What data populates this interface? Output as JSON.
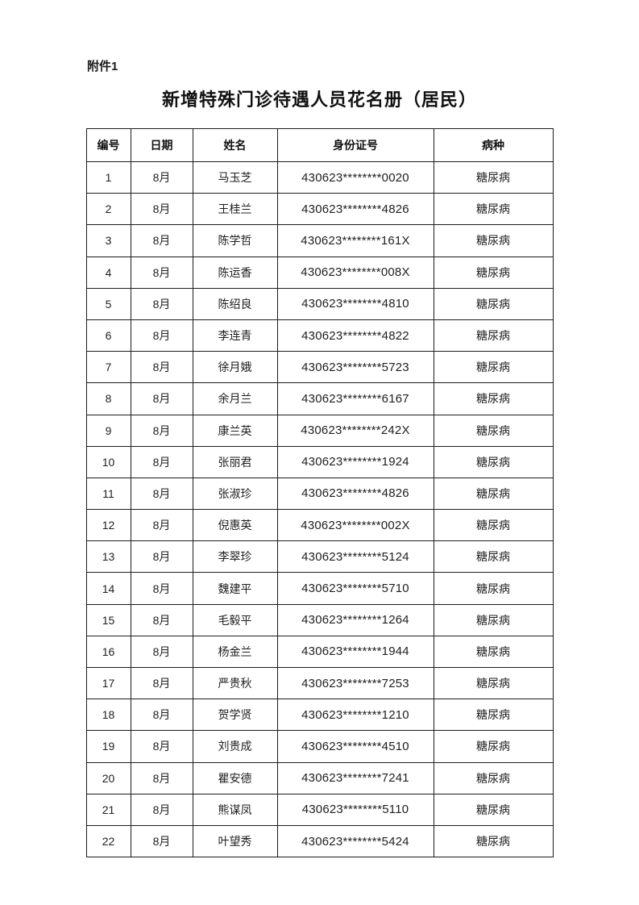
{
  "page": {
    "attachment_label": "附件1",
    "title": "新增特殊门诊待遇人员花名册（居民）"
  },
  "table": {
    "headers": [
      "编号",
      "日期",
      "姓名",
      "身份证号",
      "病种"
    ],
    "column_keys": [
      "number",
      "date",
      "name",
      "id",
      "disease"
    ],
    "rows": [
      [
        "1",
        "8月",
        "马玉芝",
        "430623********0020",
        "糖尿病"
      ],
      [
        "2",
        "8月",
        "王桂兰",
        "430623********4826",
        "糖尿病"
      ],
      [
        "3",
        "8月",
        "陈学哲",
        "430623********161X",
        "糖尿病"
      ],
      [
        "4",
        "8月",
        "陈运香",
        "430623********008X",
        "糖尿病"
      ],
      [
        "5",
        "8月",
        "陈绍良",
        "430623********4810",
        "糖尿病"
      ],
      [
        "6",
        "8月",
        "李连青",
        "430623********4822",
        "糖尿病"
      ],
      [
        "7",
        "8月",
        "徐月娥",
        "430623********5723",
        "糖尿病"
      ],
      [
        "8",
        "8月",
        "余月兰",
        "430623********6167",
        "糖尿病"
      ],
      [
        "9",
        "8月",
        "康兰英",
        "430623********242X",
        "糖尿病"
      ],
      [
        "10",
        "8月",
        "张丽君",
        "430623********1924",
        "糖尿病"
      ],
      [
        "11",
        "8月",
        "张淑珍",
        "430623********4826",
        "糖尿病"
      ],
      [
        "12",
        "8月",
        "倪惠英",
        "430623********002X",
        "糖尿病"
      ],
      [
        "13",
        "8月",
        "李翠珍",
        "430623********5124",
        "糖尿病"
      ],
      [
        "14",
        "8月",
        "魏建平",
        "430623********5710",
        "糖尿病"
      ],
      [
        "15",
        "8月",
        "毛毅平",
        "430623********1264",
        "糖尿病"
      ],
      [
        "16",
        "8月",
        "杨金兰",
        "430623********1944",
        "糖尿病"
      ],
      [
        "17",
        "8月",
        "严贵秋",
        "430623********7253",
        "糖尿病"
      ],
      [
        "18",
        "8月",
        "贺学贤",
        "430623********1210",
        "糖尿病"
      ],
      [
        "19",
        "8月",
        "刘贵成",
        "430623********4510",
        "糖尿病"
      ],
      [
        "20",
        "8月",
        "瞿安德",
        "430623********7241",
        "糖尿病"
      ],
      [
        "21",
        "8月",
        "熊谋凤",
        "430623********5110",
        "糖尿病"
      ],
      [
        "22",
        "8月",
        "叶望秀",
        "430623********5424",
        "糖尿病"
      ]
    ]
  }
}
